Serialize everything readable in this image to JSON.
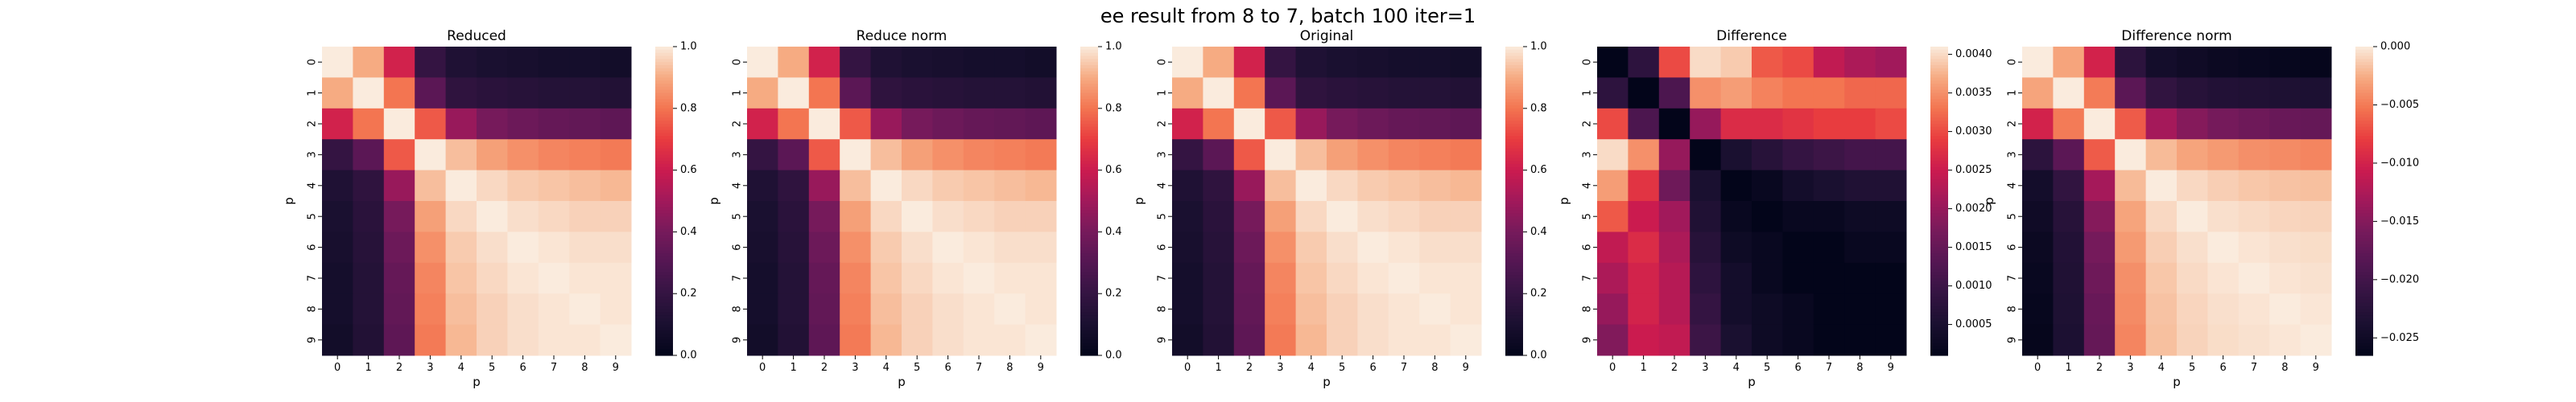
{
  "figure": {
    "suptitle": "ee result from 8 to 7, batch 100 iter=1"
  },
  "chart_data": [
    {
      "type": "heatmap",
      "title": "Reduced",
      "xlabel": "p",
      "ylabel": "p",
      "x_ticks": [
        "0",
        "1",
        "2",
        "3",
        "4",
        "5",
        "6",
        "7",
        "8",
        "9"
      ],
      "y_ticks": [
        "0",
        "1",
        "2",
        "3",
        "4",
        "5",
        "6",
        "7",
        "8",
        "9"
      ],
      "colormap": "rocket",
      "vmin": 0,
      "vmax": 1,
      "colorbar_ticks": [
        0,
        0.2,
        0.4,
        0.6,
        0.8,
        1.0
      ],
      "colorbar_tick_labels": [
        "0.0",
        "0.2",
        "0.4",
        "0.6",
        "0.8",
        "1.0"
      ],
      "values": [
        [
          1.0,
          0.9,
          0.62,
          0.2,
          0.12,
          0.1,
          0.09,
          0.08,
          0.08,
          0.07
        ],
        [
          0.9,
          1.0,
          0.8,
          0.32,
          0.18,
          0.16,
          0.15,
          0.14,
          0.14,
          0.13
        ],
        [
          0.62,
          0.8,
          1.0,
          0.75,
          0.48,
          0.4,
          0.37,
          0.35,
          0.34,
          0.33
        ],
        [
          0.2,
          0.32,
          0.75,
          1.0,
          0.93,
          0.88,
          0.85,
          0.83,
          0.82,
          0.81
        ],
        [
          0.12,
          0.18,
          0.48,
          0.93,
          1.0,
          0.97,
          0.95,
          0.94,
          0.93,
          0.92
        ],
        [
          0.1,
          0.16,
          0.4,
          0.88,
          0.97,
          1.0,
          0.98,
          0.97,
          0.96,
          0.96
        ],
        [
          0.09,
          0.15,
          0.37,
          0.85,
          0.95,
          0.98,
          1.0,
          0.99,
          0.98,
          0.98
        ],
        [
          0.08,
          0.14,
          0.35,
          0.83,
          0.94,
          0.97,
          0.99,
          1.0,
          0.99,
          0.99
        ],
        [
          0.08,
          0.14,
          0.34,
          0.82,
          0.93,
          0.96,
          0.98,
          0.99,
          1.0,
          0.99
        ],
        [
          0.07,
          0.13,
          0.33,
          0.81,
          0.92,
          0.96,
          0.98,
          0.99,
          0.99,
          1.0
        ]
      ]
    },
    {
      "type": "heatmap",
      "title": "Reduce norm",
      "xlabel": "p",
      "ylabel": "p",
      "x_ticks": [
        "0",
        "1",
        "2",
        "3",
        "4",
        "5",
        "6",
        "7",
        "8",
        "9"
      ],
      "y_ticks": [
        "0",
        "1",
        "2",
        "3",
        "4",
        "5",
        "6",
        "7",
        "8",
        "9"
      ],
      "colormap": "rocket",
      "vmin": 0,
      "vmax": 1,
      "colorbar_ticks": [
        0,
        0.2,
        0.4,
        0.6,
        0.8,
        1.0
      ],
      "colorbar_tick_labels": [
        "0.0",
        "0.2",
        "0.4",
        "0.6",
        "0.8",
        "1.0"
      ],
      "values": [
        [
          1.0,
          0.9,
          0.62,
          0.2,
          0.12,
          0.1,
          0.09,
          0.08,
          0.08,
          0.07
        ],
        [
          0.9,
          1.0,
          0.8,
          0.32,
          0.18,
          0.16,
          0.15,
          0.14,
          0.14,
          0.13
        ],
        [
          0.62,
          0.8,
          1.0,
          0.75,
          0.48,
          0.4,
          0.37,
          0.35,
          0.34,
          0.33
        ],
        [
          0.2,
          0.32,
          0.75,
          1.0,
          0.93,
          0.88,
          0.85,
          0.83,
          0.82,
          0.81
        ],
        [
          0.12,
          0.18,
          0.48,
          0.93,
          1.0,
          0.97,
          0.95,
          0.94,
          0.93,
          0.92
        ],
        [
          0.1,
          0.16,
          0.4,
          0.88,
          0.97,
          1.0,
          0.98,
          0.97,
          0.96,
          0.96
        ],
        [
          0.09,
          0.15,
          0.37,
          0.85,
          0.95,
          0.98,
          1.0,
          0.99,
          0.98,
          0.98
        ],
        [
          0.08,
          0.14,
          0.35,
          0.83,
          0.94,
          0.97,
          0.99,
          1.0,
          0.99,
          0.99
        ],
        [
          0.08,
          0.14,
          0.34,
          0.82,
          0.93,
          0.96,
          0.98,
          0.99,
          1.0,
          0.99
        ],
        [
          0.07,
          0.13,
          0.33,
          0.81,
          0.92,
          0.96,
          0.98,
          0.99,
          0.99,
          1.0
        ]
      ]
    },
    {
      "type": "heatmap",
      "title": "Original",
      "xlabel": "p",
      "ylabel": "p",
      "x_ticks": [
        "0",
        "1",
        "2",
        "3",
        "4",
        "5",
        "6",
        "7",
        "8",
        "9"
      ],
      "y_ticks": [
        "0",
        "1",
        "2",
        "3",
        "4",
        "5",
        "6",
        "7",
        "8",
        "9"
      ],
      "colormap": "rocket",
      "vmin": 0,
      "vmax": 1,
      "colorbar_ticks": [
        0,
        0.2,
        0.4,
        0.6,
        0.8,
        1.0
      ],
      "colorbar_tick_labels": [
        "0.0",
        "0.2",
        "0.4",
        "0.6",
        "0.8",
        "1.0"
      ],
      "values": [
        [
          1.0,
          0.9,
          0.62,
          0.2,
          0.12,
          0.1,
          0.09,
          0.08,
          0.08,
          0.07
        ],
        [
          0.9,
          1.0,
          0.8,
          0.32,
          0.18,
          0.16,
          0.15,
          0.14,
          0.14,
          0.13
        ],
        [
          0.62,
          0.8,
          1.0,
          0.75,
          0.48,
          0.4,
          0.37,
          0.35,
          0.34,
          0.33
        ],
        [
          0.2,
          0.32,
          0.75,
          1.0,
          0.93,
          0.88,
          0.85,
          0.83,
          0.82,
          0.81
        ],
        [
          0.12,
          0.18,
          0.48,
          0.93,
          1.0,
          0.97,
          0.95,
          0.94,
          0.93,
          0.92
        ],
        [
          0.1,
          0.16,
          0.4,
          0.88,
          0.97,
          1.0,
          0.98,
          0.97,
          0.96,
          0.96
        ],
        [
          0.09,
          0.15,
          0.37,
          0.85,
          0.95,
          0.98,
          1.0,
          0.99,
          0.98,
          0.98
        ],
        [
          0.08,
          0.14,
          0.35,
          0.83,
          0.94,
          0.97,
          0.99,
          1.0,
          0.99,
          0.99
        ],
        [
          0.08,
          0.14,
          0.34,
          0.82,
          0.93,
          0.96,
          0.98,
          0.99,
          1.0,
          0.99
        ],
        [
          0.07,
          0.13,
          0.33,
          0.81,
          0.92,
          0.96,
          0.98,
          0.99,
          0.99,
          1.0
        ]
      ]
    },
    {
      "type": "heatmap",
      "title": "Difference",
      "xlabel": "p",
      "ylabel": "p",
      "x_ticks": [
        "0",
        "1",
        "2",
        "3",
        "4",
        "5",
        "6",
        "7",
        "8",
        "9"
      ],
      "y_ticks": [
        "0",
        "1",
        "2",
        "3",
        "4",
        "5",
        "6",
        "7",
        "8",
        "9"
      ],
      "colormap": "rocket",
      "vmin": 0.0001,
      "vmax": 0.0041,
      "colorbar_ticks": [
        0.0005,
        0.001,
        0.0015,
        0.002,
        0.0025,
        0.003,
        0.0035,
        0.004
      ],
      "colorbar_tick_labels": [
        "0.0005",
        "0.0010",
        "0.0015",
        "0.0020",
        "0.0025",
        "0.0030",
        "0.0035",
        "0.0040"
      ],
      "values": [
        [
          0.0001,
          0.0008,
          0.003,
          0.004,
          0.0039,
          0.0031,
          0.003,
          0.0024,
          0.0022,
          0.0021
        ],
        [
          0.0008,
          0.0001,
          0.0012,
          0.0035,
          0.0036,
          0.0034,
          0.0033,
          0.0033,
          0.0032,
          0.0032
        ],
        [
          0.003,
          0.0012,
          0.0001,
          0.002,
          0.0027,
          0.0027,
          0.0028,
          0.0029,
          0.0029,
          0.003
        ],
        [
          0.004,
          0.0035,
          0.002,
          0.0001,
          0.0005,
          0.0007,
          0.0009,
          0.001,
          0.0011,
          0.0011
        ],
        [
          0.0036,
          0.0028,
          0.0016,
          0.0005,
          0.0001,
          0.0002,
          0.0004,
          0.0005,
          0.0006,
          0.0006
        ],
        [
          0.0031,
          0.0025,
          0.0021,
          0.0006,
          0.0002,
          0.0001,
          0.0002,
          0.0002,
          0.0003,
          0.0003
        ],
        [
          0.0024,
          0.0027,
          0.0022,
          0.0007,
          0.0003,
          0.0002,
          0.0001,
          0.0001,
          0.0002,
          0.0002
        ],
        [
          0.0022,
          0.0026,
          0.0023,
          0.0008,
          0.0004,
          0.0002,
          0.0001,
          0.0001,
          0.0001,
          0.0001
        ],
        [
          0.002,
          0.0026,
          0.0023,
          0.0009,
          0.0004,
          0.0003,
          0.0002,
          0.0001,
          0.0001,
          0.0001
        ],
        [
          0.0018,
          0.0025,
          0.0024,
          0.001,
          0.0005,
          0.0003,
          0.0002,
          0.0001,
          0.0001,
          0.0001
        ]
      ]
    },
    {
      "type": "heatmap",
      "title": "Difference norm",
      "xlabel": "p",
      "ylabel": "p",
      "x_ticks": [
        "0",
        "1",
        "2",
        "3",
        "4",
        "5",
        "6",
        "7",
        "8",
        "9"
      ],
      "y_ticks": [
        "0",
        "1",
        "2",
        "3",
        "4",
        "5",
        "6",
        "7",
        "8",
        "9"
      ],
      "colormap": "rocket",
      "vmin": -0.0265,
      "vmax": 0,
      "colorbar_ticks": [
        0.0,
        -0.005,
        -0.01,
        -0.015,
        -0.02,
        -0.025
      ],
      "colorbar_tick_labels": [
        "0.000",
        "−0.005",
        "−0.010",
        "−0.015",
        "−0.020",
        "−0.025"
      ],
      "values": [
        [
          0.0,
          -0.003,
          -0.01,
          -0.022,
          -0.0245,
          -0.025,
          -0.0255,
          -0.0258,
          -0.026,
          -0.0262
        ],
        [
          -0.003,
          0.0,
          -0.005,
          -0.018,
          -0.0215,
          -0.0225,
          -0.023,
          -0.0232,
          -0.0234,
          -0.0236
        ],
        [
          -0.01,
          -0.005,
          0.0,
          -0.0065,
          -0.013,
          -0.015,
          -0.016,
          -0.0165,
          -0.017,
          -0.0172
        ],
        [
          -0.022,
          -0.018,
          -0.0065,
          0.0,
          -0.002,
          -0.003,
          -0.0035,
          -0.004,
          -0.0042,
          -0.0045
        ],
        [
          -0.0245,
          -0.0215,
          -0.013,
          -0.002,
          0.0,
          -0.0008,
          -0.0012,
          -0.0015,
          -0.0017,
          -0.0018
        ],
        [
          -0.025,
          -0.0225,
          -0.015,
          -0.003,
          -0.0008,
          0.0,
          -0.0005,
          -0.0007,
          -0.0009,
          -0.001
        ],
        [
          -0.0255,
          -0.023,
          -0.016,
          -0.0035,
          -0.0012,
          -0.0005,
          0.0,
          -0.0003,
          -0.0005,
          -0.0006
        ],
        [
          -0.0258,
          -0.0232,
          -0.0165,
          -0.004,
          -0.0015,
          -0.0007,
          -0.0003,
          0.0,
          -0.0003,
          -0.0004
        ],
        [
          -0.026,
          -0.0234,
          -0.017,
          -0.0042,
          -0.0017,
          -0.0009,
          -0.0005,
          -0.0003,
          0.0,
          -0.0002
        ],
        [
          -0.0262,
          -0.0236,
          -0.0172,
          -0.0045,
          -0.0018,
          -0.001,
          -0.0006,
          -0.0004,
          -0.0002,
          0.0
        ]
      ]
    }
  ]
}
